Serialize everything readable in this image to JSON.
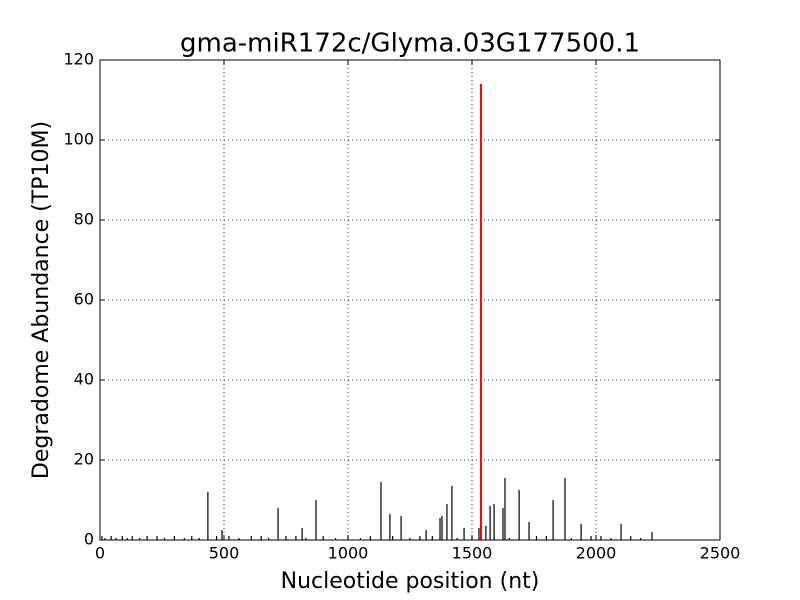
{
  "chart_data": {
    "type": "stem",
    "title": "gma-miR172c/Glyma.03G177500.1",
    "xlabel": "Nucleotide position (nt)",
    "ylabel": "Degradome Abundance (TP10M)",
    "xlim": [
      0,
      2500
    ],
    "xticks": [
      0,
      500,
      1000,
      1500,
      2000,
      2500
    ],
    "ylim": [
      0,
      120
    ],
    "yticks": [
      0,
      20,
      40,
      60,
      80,
      100,
      120
    ],
    "grid": true,
    "series": [
      {
        "color": "#000000",
        "x": [
          435,
          492,
          718,
          815,
          871,
          1133,
          1169,
          1214,
          1315,
          1371,
          1379,
          1399,
          1419,
          1468,
          1528,
          1556,
          1573,
          1589,
          1625,
          1633,
          1690,
          1730,
          1827,
          1875,
          1940,
          2101,
          2226,
          8,
          20,
          45,
          65,
          90,
          110,
          130,
          160,
          190,
          230,
          260,
          300,
          340,
          370,
          400,
          470,
          520,
          560,
          610,
          650,
          680,
          750,
          790,
          830,
          900,
          950,
          1000,
          1050,
          1090,
          1180,
          1250,
          1290,
          1340,
          1440,
          1500,
          1650,
          1760,
          1800,
          1900,
          1980,
          2020,
          2060,
          2140,
          2180
        ],
        "values": [
          12,
          2.5,
          8,
          3,
          10,
          14.5,
          6.5,
          6,
          2.5,
          5.5,
          6,
          9,
          13.5,
          3,
          3,
          3.5,
          8.5,
          9,
          8,
          15.5,
          12.5,
          4.5,
          10,
          15.5,
          4,
          4,
          2,
          1,
          0.5,
          1,
          0.5,
          1,
          0.5,
          1,
          0.5,
          1,
          1,
          0.5,
          1,
          0.5,
          1,
          0.5,
          1,
          1,
          0.5,
          1,
          1,
          0.5,
          1,
          1,
          0.5,
          1,
          0.5,
          1,
          0.5,
          1,
          1,
          0.5,
          1,
          1,
          0.5,
          1,
          0.5,
          1,
          1,
          0.5,
          1,
          1,
          0.5,
          1,
          0.5
        ]
      },
      {
        "color": "#ff0000",
        "x": [
          1536
        ],
        "values": [
          114
        ]
      }
    ]
  }
}
